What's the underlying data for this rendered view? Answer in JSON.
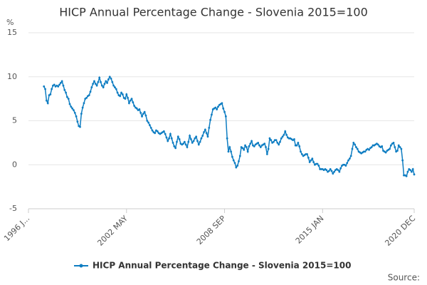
{
  "chart_data": {
    "type": "line",
    "title": "HICP Annual Percentage Change - Slovenia 2015=100",
    "y_label": "%",
    "source": "Source:",
    "categories": [
      "1996 J...",
      null,
      null,
      null,
      null,
      null,
      null,
      null,
      null,
      null,
      null,
      null,
      null,
      null,
      null,
      null,
      null,
      null,
      null,
      null,
      null,
      null,
      null,
      null,
      null,
      null,
      null,
      null,
      null,
      null,
      null,
      null,
      null,
      null,
      null,
      null,
      null,
      null,
      null,
      null,
      null,
      null,
      null,
      null,
      null,
      null,
      null,
      null,
      null,
      null,
      null,
      null,
      null,
      null,
      null,
      null,
      null,
      null,
      null,
      null,
      null,
      null,
      null,
      null,
      null,
      null,
      null,
      null,
      null,
      null,
      null,
      null,
      null,
      null,
      null,
      null,
      "2002 MAY",
      null,
      null,
      null,
      null,
      null,
      null,
      null,
      null,
      null,
      null,
      null,
      null,
      null,
      null,
      null,
      null,
      null,
      null,
      null,
      null,
      null,
      null,
      null,
      null,
      null,
      null,
      null,
      null,
      null,
      null,
      null,
      null,
      null,
      null,
      null,
      null,
      null,
      null,
      null,
      null,
      null,
      null,
      null,
      null,
      null,
      null,
      null,
      null,
      null,
      null,
      null,
      null,
      null,
      null,
      null,
      null,
      null,
      null,
      null,
      null,
      null,
      null,
      null,
      null,
      null,
      null,
      null,
      null,
      null,
      null,
      null,
      null,
      null,
      null,
      null,
      "2008 SEP",
      null,
      null,
      null,
      null,
      null,
      null,
      null,
      null,
      null,
      null,
      null,
      null,
      null,
      null,
      null,
      null,
      null,
      null,
      null,
      null,
      null,
      null,
      null,
      null,
      null,
      null,
      null,
      null,
      null,
      null,
      null,
      null,
      null,
      null,
      null,
      null,
      null,
      null,
      null,
      null,
      null,
      null,
      null,
      null,
      null,
      null,
      null,
      null,
      null,
      null,
      null,
      null,
      null,
      null,
      null,
      null,
      null,
      null,
      null,
      null,
      null,
      null,
      null,
      null,
      null,
      null,
      null,
      null,
      null,
      null,
      null,
      null,
      null,
      null,
      null,
      "2015 JAN",
      null,
      null,
      null,
      null,
      null,
      null,
      null,
      null,
      null,
      null,
      null,
      null,
      null,
      null,
      null,
      null,
      null,
      null,
      null,
      null,
      null,
      null,
      null,
      null,
      null,
      null,
      null,
      null,
      null,
      null,
      null,
      null,
      null,
      null,
      null,
      null,
      null,
      null,
      null,
      null,
      null,
      null,
      null,
      null,
      null,
      null,
      null,
      null,
      null,
      null,
      null,
      null,
      null,
      null,
      null,
      null,
      null,
      null,
      null,
      null,
      null,
      null,
      null,
      null,
      null,
      null,
      null,
      null,
      null,
      null,
      "2020 DEC"
    ],
    "series": [
      {
        "name": "HICP Annual Percentage Change - Slovenia 2015=100",
        "color": "#0e7dc2",
        "values": [
          null,
          null,
          null,
          null,
          null,
          null,
          null,
          null,
          null,
          null,
          null,
          null,
          8.9,
          8.6,
          7.3,
          7.0,
          7.9,
          8.0,
          8.6,
          9.0,
          9.1,
          8.9,
          9.0,
          8.9,
          9.1,
          9.3,
          9.5,
          9.0,
          8.5,
          8.2,
          7.7,
          7.5,
          6.9,
          6.6,
          6.4,
          6.2,
          5.9,
          5.5,
          4.9,
          4.4,
          4.3,
          5.8,
          6.5,
          7.0,
          7.5,
          7.6,
          7.8,
          7.9,
          8.3,
          8.8,
          9.2,
          9.5,
          9.2,
          9.0,
          9.4,
          9.9,
          9.4,
          9.0,
          8.8,
          9.2,
          9.5,
          9.3,
          9.7,
          10.0,
          9.8,
          9.4,
          9.0,
          8.8,
          8.6,
          8.2,
          7.9,
          7.8,
          8.2,
          8.0,
          7.6,
          7.5,
          8.0,
          7.6,
          7.0,
          7.3,
          7.5,
          7.1,
          6.7,
          6.5,
          6.4,
          6.2,
          6.3,
          5.9,
          5.5,
          5.8,
          6.0,
          5.6,
          5.0,
          4.8,
          4.5,
          4.2,
          3.9,
          3.7,
          3.6,
          3.9,
          3.8,
          3.6,
          3.5,
          3.6,
          3.7,
          3.8,
          3.5,
          3.1,
          2.7,
          3.0,
          3.5,
          3.0,
          2.5,
          2.1,
          1.9,
          2.6,
          3.2,
          2.9,
          2.4,
          2.3,
          2.4,
          2.6,
          2.3,
          2.0,
          2.6,
          3.3,
          2.9,
          2.5,
          2.7,
          3.0,
          3.2,
          2.7,
          2.3,
          2.6,
          3.0,
          3.3,
          3.7,
          4.0,
          3.6,
          3.2,
          4.2,
          5.1,
          5.7,
          6.3,
          6.4,
          6.5,
          6.3,
          6.6,
          6.8,
          6.9,
          7.0,
          6.4,
          6.0,
          5.5,
          3.0,
          1.5,
          2.0,
          1.5,
          0.9,
          0.5,
          0.2,
          -0.3,
          -0.1,
          0.4,
          1.0,
          2.0,
          1.9,
          1.7,
          2.2,
          2.0,
          1.5,
          2.1,
          2.4,
          2.7,
          2.2,
          2.1,
          2.3,
          2.4,
          2.5,
          2.2,
          2.0,
          2.2,
          2.3,
          2.4,
          2.0,
          1.2,
          1.8,
          3.0,
          2.8,
          2.5,
          2.6,
          2.8,
          2.8,
          2.5,
          2.3,
          2.6,
          3.0,
          3.2,
          3.4,
          3.8,
          3.4,
          3.1,
          3.0,
          3.0,
          2.9,
          2.8,
          2.9,
          2.2,
          2.2,
          2.5,
          2.1,
          1.5,
          1.2,
          1.0,
          1.1,
          1.2,
          1.2,
          0.8,
          0.3,
          0.5,
          0.7,
          0.3,
          0.0,
          0.1,
          0.1,
          -0.1,
          -0.5,
          -0.5,
          -0.5,
          -0.6,
          -0.5,
          -0.6,
          -0.8,
          -0.7,
          -0.5,
          -0.7,
          -1.0,
          -0.8,
          -0.6,
          -0.5,
          -0.6,
          -0.8,
          -0.4,
          -0.1,
          0.0,
          0.0,
          -0.1,
          0.2,
          0.5,
          0.7,
          1.0,
          1.8,
          2.5,
          2.3,
          2.0,
          1.8,
          1.5,
          1.4,
          1.3,
          1.4,
          1.5,
          1.5,
          1.7,
          1.8,
          1.7,
          1.9,
          2.0,
          2.2,
          2.2,
          2.3,
          2.4,
          2.3,
          2.1,
          2.0,
          2.1,
          1.6,
          1.5,
          1.4,
          1.6,
          1.7,
          1.8,
          2.2,
          2.4,
          2.5,
          2.0,
          1.5,
          1.6,
          2.2,
          2.0,
          1.8,
          0.5,
          -1.2,
          -1.2,
          -1.3,
          -0.8,
          -0.5,
          -0.6,
          -0.8,
          -0.5,
          -1.1
        ]
      }
    ],
    "ylim": [
      -5,
      15
    ],
    "yticks": [
      -5,
      0,
      5,
      10,
      15
    ],
    "grid": true
  }
}
